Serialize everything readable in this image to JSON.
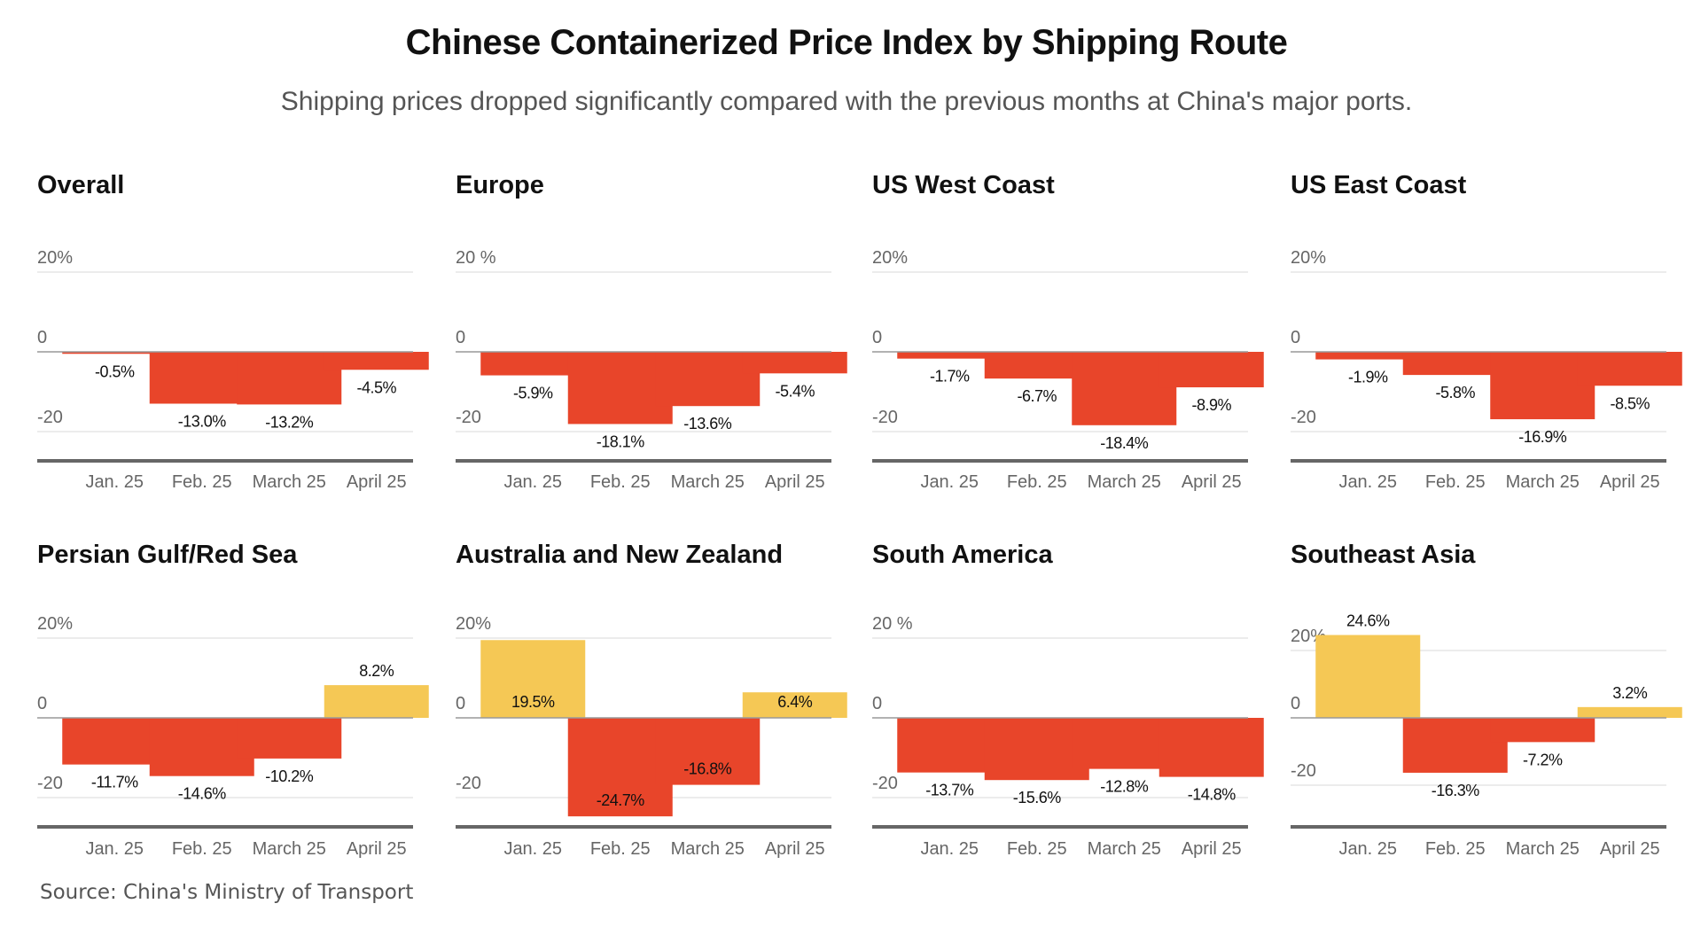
{
  "header": {
    "title": "Chinese Containerized Price Index by Shipping Route",
    "subtitle": "Shipping prices dropped significantly compared with the previous months at China's major ports."
  },
  "footer": {
    "source": "Source: China's Ministry of Transport"
  },
  "colors": {
    "negative": "#E8452A",
    "positive": "#F5C855",
    "gridline": "#e6e6e6",
    "zero_line": "#999999",
    "axis": "#666666"
  },
  "chart_data": [
    {
      "type": "bar",
      "title": "Overall",
      "categories": [
        "Jan. 25",
        "Feb. 25",
        "March 25",
        "April 25"
      ],
      "values": [
        -0.5,
        -13.0,
        -13.2,
        -4.5
      ],
      "labels": [
        "-0.5%",
        "-13.0%",
        "-13.2%",
        "-4.5%"
      ],
      "yticks": [
        "20%",
        "0",
        "-20"
      ],
      "ytick_values": [
        20,
        0,
        -20
      ],
      "ylim": [
        -27,
        27
      ],
      "grid": true,
      "xlabel": "",
      "ylabel": ""
    },
    {
      "type": "bar",
      "title": "Europe",
      "categories": [
        "Jan. 25",
        "Feb. 25",
        "March 25",
        "April 25"
      ],
      "values": [
        -5.9,
        -18.1,
        -13.6,
        -5.4
      ],
      "labels": [
        "-5.9%",
        "-18.1%",
        "-13.6%",
        "-5.4%"
      ],
      "yticks": [
        "20 %",
        "0",
        "-20"
      ],
      "ytick_values": [
        20,
        0,
        -20
      ],
      "ylim": [
        -27,
        27
      ],
      "grid": true,
      "xlabel": "",
      "ylabel": ""
    },
    {
      "type": "bar",
      "title": "US West Coast",
      "categories": [
        "Jan. 25",
        "Feb. 25",
        "March 25",
        "April 25"
      ],
      "values": [
        -1.7,
        -6.7,
        -18.4,
        -8.9
      ],
      "labels": [
        "-1.7%",
        "-6.7%",
        "-18.4%",
        "-8.9%"
      ],
      "yticks": [
        "20%",
        "0",
        "-20"
      ],
      "ytick_values": [
        20,
        0,
        -20
      ],
      "ylim": [
        -27,
        27
      ],
      "grid": true,
      "xlabel": "",
      "ylabel": ""
    },
    {
      "type": "bar",
      "title": "US East Coast",
      "categories": [
        "Jan. 25",
        "Feb. 25",
        "March 25",
        "April 25"
      ],
      "values": [
        -1.9,
        -5.8,
        -16.9,
        -8.5
      ],
      "labels": [
        "-1.9%",
        "-5.8%",
        "-16.9%",
        "-8.5%"
      ],
      "yticks": [
        "20%",
        "0",
        "-20"
      ],
      "ytick_values": [
        20,
        0,
        -20
      ],
      "ylim": [
        -27,
        27
      ],
      "grid": true,
      "xlabel": "",
      "ylabel": ""
    },
    {
      "type": "bar",
      "title": "Persian Gulf/Red Sea",
      "categories": [
        "Jan. 25",
        "Feb. 25",
        "March 25",
        "April 25"
      ],
      "values": [
        -11.7,
        -14.6,
        -10.2,
        8.2
      ],
      "labels": [
        "-11.7%",
        "-14.6%",
        "-10.2%",
        "8.2%"
      ],
      "yticks": [
        "20%",
        "0",
        "-20"
      ],
      "ytick_values": [
        20,
        0,
        -20
      ],
      "ylim": [
        -27,
        27
      ],
      "grid": true,
      "xlabel": "",
      "ylabel": ""
    },
    {
      "type": "bar",
      "title": "Australia and New Zealand",
      "categories": [
        "Jan. 25",
        "Feb. 25",
        "March 25",
        "April 25"
      ],
      "values": [
        19.5,
        -24.7,
        -16.8,
        6.4
      ],
      "labels": [
        "19.5%",
        "-24.7%",
        "-16.8%",
        "6.4%"
      ],
      "labels_inside": true,
      "yticks": [
        "20%",
        "0",
        "-20"
      ],
      "ytick_values": [
        20,
        0,
        -20
      ],
      "ylim": [
        -27,
        27
      ],
      "grid": true,
      "xlabel": "",
      "ylabel": ""
    },
    {
      "type": "bar",
      "title": "South America",
      "categories": [
        "Jan. 25",
        "Feb. 25",
        "March 25",
        "April 25"
      ],
      "values": [
        -13.7,
        -15.6,
        -12.8,
        -14.8
      ],
      "labels": [
        "-13.7%",
        "-15.6%",
        "-12.8%",
        "-14.8%"
      ],
      "yticks": [
        "20 %",
        "0",
        "-20"
      ],
      "ytick_values": [
        20,
        0,
        -20
      ],
      "ylim": [
        -27,
        27
      ],
      "grid": true,
      "xlabel": "",
      "ylabel": ""
    },
    {
      "type": "bar",
      "title": "Southeast Asia",
      "categories": [
        "Jan. 25",
        "Feb. 25",
        "March 25",
        "April 25"
      ],
      "values": [
        24.6,
        -16.3,
        -7.2,
        3.2
      ],
      "labels": [
        "24.6%",
        "-16.3%",
        "-7.2%",
        "3.2%"
      ],
      "yticks": [
        "20%",
        "0",
        "-20"
      ],
      "ytick_values": [
        20,
        0,
        -20
      ],
      "ylim": [
        -30,
        30
      ],
      "grid": true,
      "xlabel": "",
      "ylabel": ""
    }
  ]
}
